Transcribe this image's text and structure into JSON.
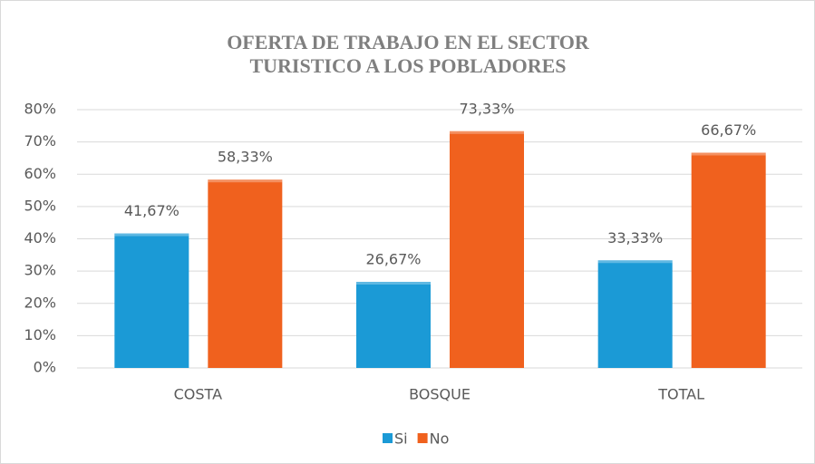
{
  "chart_data": {
    "type": "bar",
    "title": "OFERTA DE TRABAJO EN EL SECTOR TURISTICO A LOS POBLADORES",
    "categories": [
      "COSTA",
      "BOSQUE",
      "TOTAL"
    ],
    "series": [
      {
        "name": "Si",
        "color": "#1b9ad6",
        "values": [
          41.67,
          26.67,
          33.33
        ],
        "value_labels": [
          "41,67%",
          "26,67%",
          "33,33%"
        ]
      },
      {
        "name": "No",
        "color": "#f0611e",
        "values": [
          58.33,
          73.33,
          66.67
        ],
        "value_labels": [
          "58,33%",
          "73,33%",
          "66,67%"
        ]
      }
    ],
    "ylim": [
      0,
      80
    ],
    "yticks": [
      {
        "value": 0,
        "label": "0%"
      },
      {
        "value": 10,
        "label": "10%"
      },
      {
        "value": 20,
        "label": "20%"
      },
      {
        "value": 30,
        "label": "30%"
      },
      {
        "value": 40,
        "label": "40%"
      },
      {
        "value": 50,
        "label": "50%"
      },
      {
        "value": 60,
        "label": "60%"
      },
      {
        "value": 70,
        "label": "70%"
      },
      {
        "value": 80,
        "label": "80%"
      }
    ],
    "grid": true,
    "legend": "bottom"
  }
}
